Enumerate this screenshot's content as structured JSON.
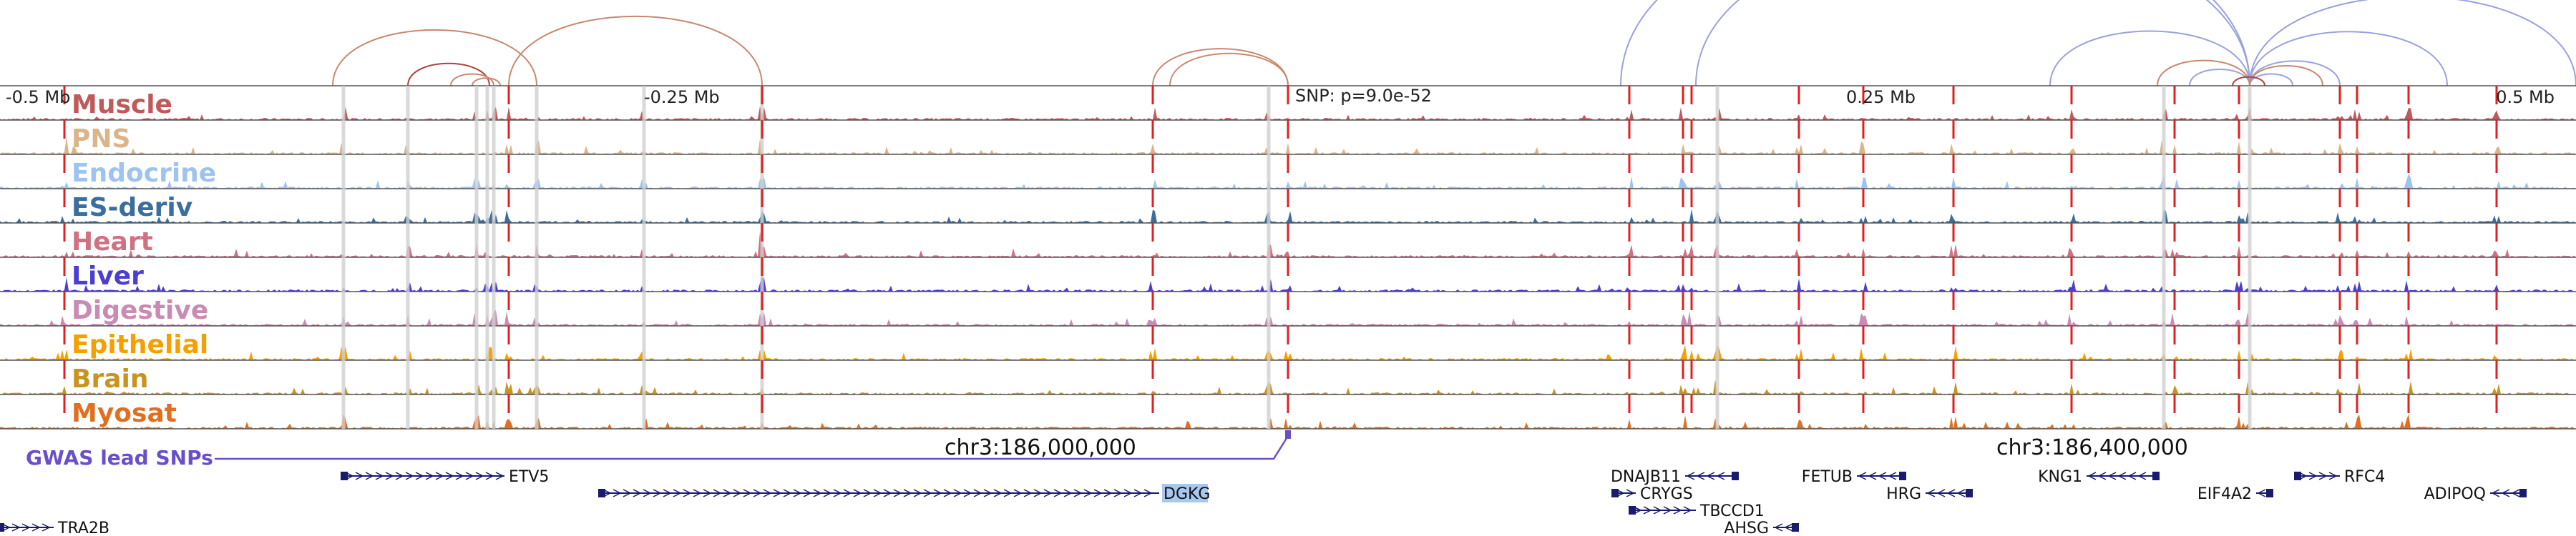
{
  "region": {
    "start": 185400000,
    "end": 186600000
  },
  "tracks": [
    {
      "name": "Muscle",
      "color": "#c05a5a"
    },
    {
      "name": "PNS",
      "color": "#dbb48a"
    },
    {
      "name": "Endocrine",
      "color": "#9fc3f0"
    },
    {
      "name": "ES-deriv",
      "color": "#3a6e9e"
    },
    {
      "name": "Heart",
      "color": "#d07080"
    },
    {
      "name": "Liver",
      "color": "#4a3fcf"
    },
    {
      "name": "Digestive",
      "color": "#c98ab4"
    },
    {
      "name": "Epithelial",
      "color": "#f5a000"
    },
    {
      "name": "Brain",
      "color": "#c89420"
    },
    {
      "name": "Myosat",
      "color": "#e07020"
    }
  ],
  "ticks": [
    {
      "label": "-0.5 Mb",
      "pos": 185400000
    },
    {
      "label": "-0.25 Mb",
      "pos": 185700000
    },
    {
      "label": "0.25 Mb",
      "pos": 186260000
    },
    {
      "label": "0.5 Mb",
      "pos": 186590000
    }
  ],
  "snp": {
    "label": "SNP: p=9.0e-52",
    "pos": 186000000
  },
  "gwas_label": "GWAS lead SNPs",
  "coord_labels": [
    {
      "label": "chr3:186,000,000",
      "pos": 185840000
    },
    {
      "label": "chr3:186,400,000",
      "pos": 186330000
    }
  ],
  "red_lines": [
    185430000,
    185637000,
    185755000,
    185937000,
    186000000,
    186159000,
    186184000,
    186188000,
    186238000,
    186268000,
    186310000,
    186365000,
    186413000,
    186443000,
    186490000,
    186498000,
    186522000,
    186563000
  ],
  "gray_lines": [
    185560000,
    185590000,
    185622000,
    185627000,
    185630000,
    185650000,
    185700000,
    185755000,
    185991000,
    186200000,
    186408000,
    186448000
  ],
  "colors": {
    "red_line": "#e02020",
    "gray_line": "#d0d0d0",
    "gwas": "#6a4fc9",
    "gene": "#1a1a6e",
    "highlight": "#a8c8f0"
  },
  "genes": [
    {
      "name": "ETV5",
      "start": 185560000,
      "end": 185635000,
      "row": 0,
      "strand": "-",
      "label_side": "right",
      "highlight": false
    },
    {
      "name": "DGKG",
      "start": 185680000,
      "end": 185940000,
      "row": 1,
      "strand": "-",
      "label_side": "right",
      "highlight": true
    },
    {
      "name": "TRA2B",
      "start": 185400000,
      "end": 185425000,
      "row": 3,
      "strand": "-",
      "label_side": "right",
      "highlight": false
    },
    {
      "name": "DNAJB11",
      "start": 186185000,
      "end": 186208000,
      "row": 0,
      "strand": "+",
      "label_side": "left",
      "highlight": false
    },
    {
      "name": "CRYGS",
      "start": 186152000,
      "end": 186162000,
      "row": 1,
      "strand": "-",
      "label_side": "right",
      "highlight": false
    },
    {
      "name": "TBCCD1",
      "start": 186160000,
      "end": 186190000,
      "row": 2,
      "strand": "-",
      "label_side": "right",
      "highlight": false
    },
    {
      "name": "AHSG",
      "start": 186226000,
      "end": 186236000,
      "row": 3,
      "strand": "+",
      "label_side": "left",
      "highlight": false
    },
    {
      "name": "FETUB",
      "start": 186265000,
      "end": 186286000,
      "row": 0,
      "strand": "+",
      "label_side": "left",
      "highlight": false
    },
    {
      "name": "HRG",
      "start": 186297000,
      "end": 186317000,
      "row": 1,
      "strand": "+",
      "label_side": "left",
      "highlight": false
    },
    {
      "name": "KNG1",
      "start": 186372000,
      "end": 186404000,
      "row": 0,
      "strand": "+",
      "label_side": "left",
      "highlight": false
    },
    {
      "name": "EIF4A2",
      "start": 186451000,
      "end": 186457000,
      "row": 1,
      "strand": "+",
      "label_side": "left",
      "highlight": false
    },
    {
      "name": "RFC4",
      "start": 186470000,
      "end": 186490000,
      "row": 0,
      "strand": "-",
      "label_side": "right",
      "highlight": false
    },
    {
      "name": "ADIPOQ",
      "start": 186560000,
      "end": 186575000,
      "row": 1,
      "strand": "+",
      "label_side": "left",
      "highlight": false
    }
  ],
  "arcs": [
    {
      "a": 185555000,
      "b": 185650000,
      "color": "#c98870"
    },
    {
      "a": 185590000,
      "b": 185628000,
      "color": "#b04040"
    },
    {
      "a": 185610000,
      "b": 185630000,
      "color": "#c98870"
    },
    {
      "a": 185620000,
      "b": 185633000,
      "color": "#c98870"
    },
    {
      "a": 185637000,
      "b": 185755000,
      "color": "#c98870"
    },
    {
      "a": 185937000,
      "b": 186000000,
      "color": "#c98870"
    },
    {
      "a": 185945000,
      "b": 186000000,
      "color": "#c98870"
    },
    {
      "a": 186155000,
      "b": 186448000,
      "color": "#9aa2dc"
    },
    {
      "a": 186190000,
      "b": 186448000,
      "color": "#9aa2dc"
    },
    {
      "a": 186355000,
      "b": 186448000,
      "color": "#9aa2dc"
    },
    {
      "a": 186420000,
      "b": 186448000,
      "color": "#9aa2dc"
    },
    {
      "a": 186448000,
      "b": 186468000,
      "color": "#9aa2dc"
    },
    {
      "a": 186448000,
      "b": 186490000,
      "color": "#9aa2dc"
    },
    {
      "a": 186448000,
      "b": 186540000,
      "color": "#9aa2dc"
    },
    {
      "a": 186448000,
      "b": 186600000,
      "color": "#9aa2dc"
    },
    {
      "a": 186405000,
      "b": 186448000,
      "color": "#c98870"
    },
    {
      "a": 186448000,
      "b": 186482000,
      "color": "#c98870"
    },
    {
      "a": 186440000,
      "b": 186455000,
      "color": "#b04040"
    }
  ]
}
